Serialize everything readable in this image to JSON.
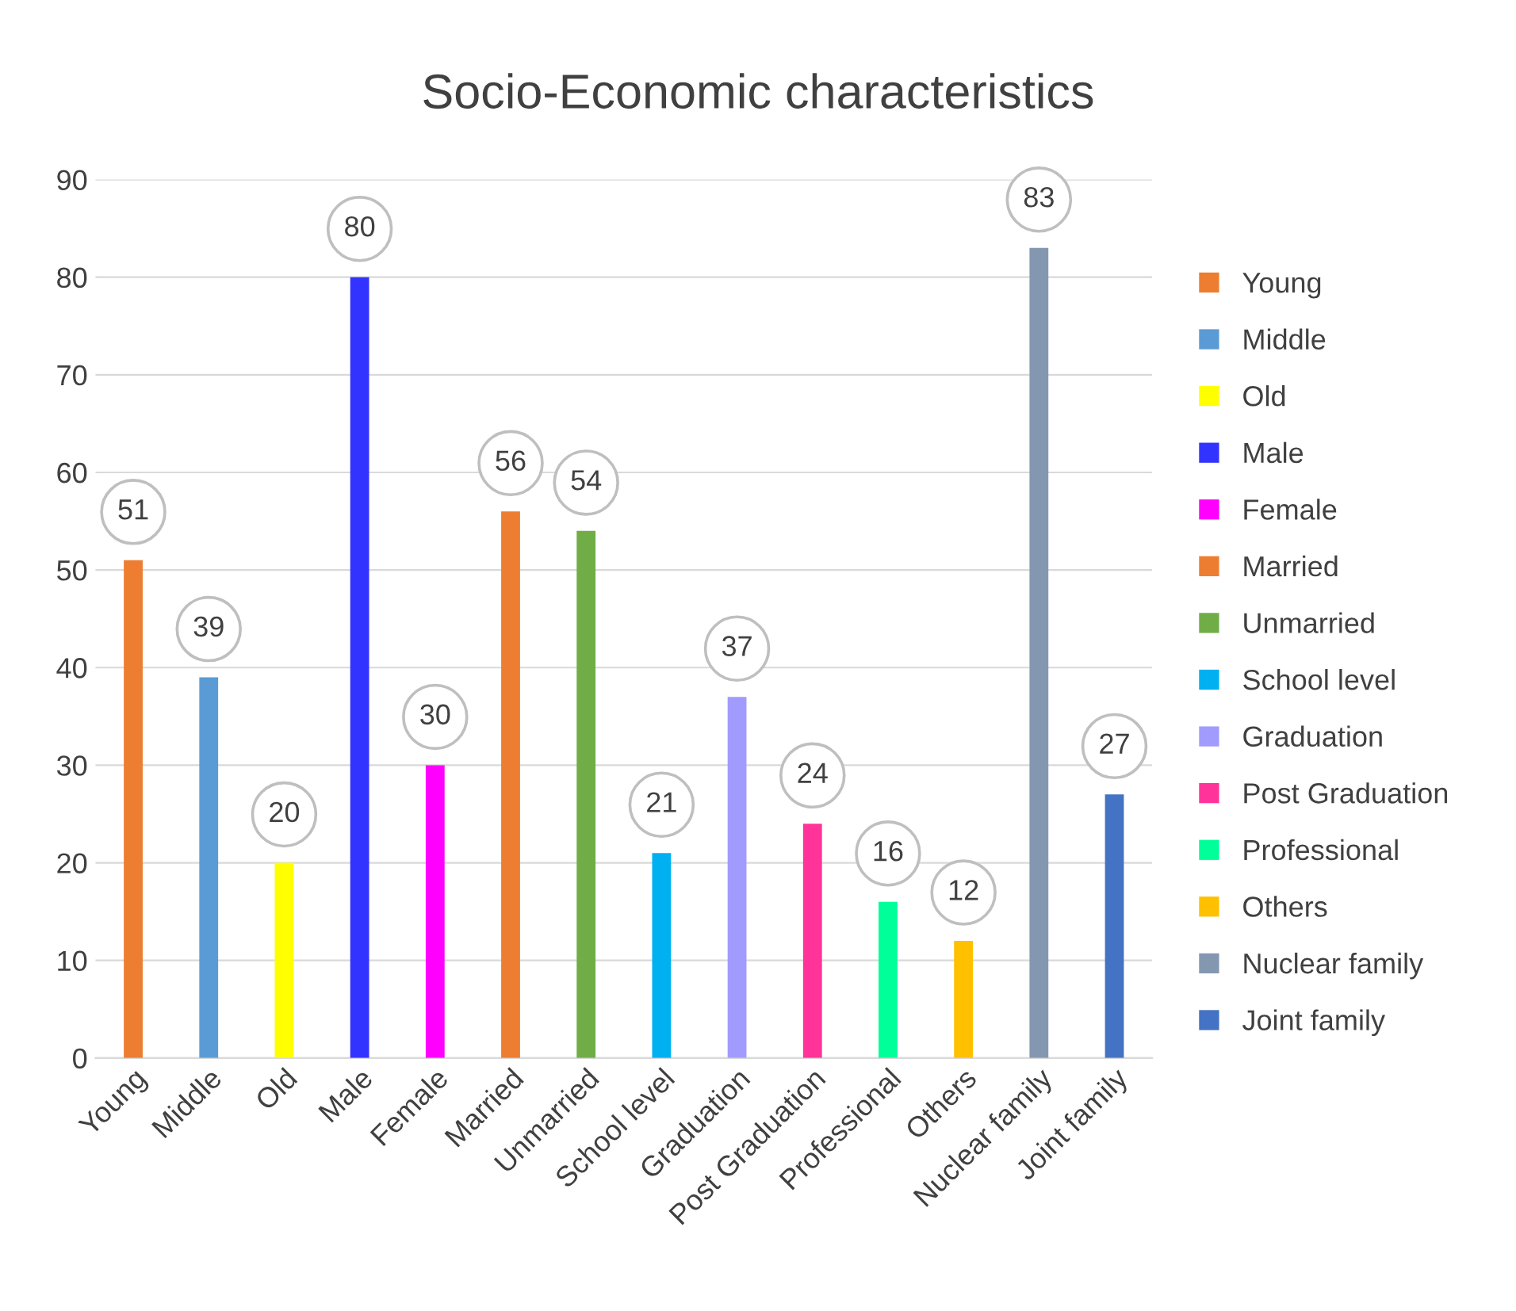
{
  "chart_data": {
    "type": "bar",
    "title": "Socio-Economic characteristics",
    "categories": [
      "Young",
      "Middle",
      "Old",
      "Male",
      "Female",
      "Married",
      "Unmarried",
      "School level",
      "Graduation",
      "Post Graduation",
      "Professional",
      "Others",
      "Nuclear family",
      "Joint family"
    ],
    "series": [
      {
        "name": "Young",
        "color": "#ed7d31",
        "values": [
          51,
          null,
          null,
          null,
          null,
          null,
          null,
          null,
          null,
          null,
          null,
          null,
          null,
          null
        ]
      },
      {
        "name": "Middle",
        "color": "#5b9bd5",
        "values": [
          null,
          39,
          null,
          null,
          null,
          null,
          null,
          null,
          null,
          null,
          null,
          null,
          null,
          null
        ]
      },
      {
        "name": "Old",
        "color": "#ffff00",
        "values": [
          null,
          null,
          20,
          null,
          null,
          null,
          null,
          null,
          null,
          null,
          null,
          null,
          null,
          null
        ]
      },
      {
        "name": "Male",
        "color": "#3333ff",
        "values": [
          null,
          null,
          null,
          80,
          null,
          null,
          null,
          null,
          null,
          null,
          null,
          null,
          null,
          null
        ]
      },
      {
        "name": "Female",
        "color": "#ff00ff",
        "values": [
          null,
          null,
          null,
          null,
          30,
          null,
          null,
          null,
          null,
          null,
          null,
          null,
          null,
          null
        ]
      },
      {
        "name": "Married",
        "color": "#ed7d31",
        "values": [
          null,
          null,
          null,
          null,
          null,
          56,
          null,
          null,
          null,
          null,
          null,
          null,
          null,
          null
        ]
      },
      {
        "name": "Unmarried",
        "color": "#70ad47",
        "values": [
          null,
          null,
          null,
          null,
          null,
          null,
          54,
          null,
          null,
          null,
          null,
          null,
          null,
          null
        ]
      },
      {
        "name": "School level",
        "color": "#00b0f0",
        "values": [
          null,
          null,
          null,
          null,
          null,
          null,
          null,
          21,
          null,
          null,
          null,
          null,
          null,
          null
        ]
      },
      {
        "name": "Graduation",
        "color": "#a29bfe",
        "values": [
          null,
          null,
          null,
          null,
          null,
          null,
          null,
          null,
          37,
          null,
          null,
          null,
          null,
          null
        ]
      },
      {
        "name": "Post Graduation",
        "color": "#ff3399",
        "values": [
          null,
          null,
          null,
          null,
          null,
          null,
          null,
          null,
          null,
          24,
          null,
          null,
          null,
          null
        ]
      },
      {
        "name": "Professional",
        "color": "#00ff99",
        "values": [
          null,
          null,
          null,
          null,
          null,
          null,
          null,
          null,
          null,
          null,
          16,
          null,
          null,
          null
        ]
      },
      {
        "name": "Others",
        "color": "#ffc000",
        "values": [
          null,
          null,
          null,
          null,
          null,
          null,
          null,
          null,
          null,
          null,
          null,
          12,
          null,
          null
        ]
      },
      {
        "name": "Nuclear family",
        "color": "#8497b0",
        "values": [
          null,
          null,
          null,
          null,
          null,
          null,
          null,
          null,
          null,
          null,
          null,
          null,
          83,
          null
        ]
      },
      {
        "name": "Joint family",
        "color": "#4472c4",
        "values": [
          null,
          null,
          null,
          null,
          null,
          null,
          null,
          null,
          null,
          null,
          null,
          null,
          null,
          27
        ]
      }
    ],
    "ylim": [
      0,
      90
    ],
    "yticks": [
      0,
      10,
      20,
      30,
      40,
      50,
      60,
      70,
      80,
      90
    ],
    "grid": "y",
    "legend": "right",
    "data_labels": true
  }
}
